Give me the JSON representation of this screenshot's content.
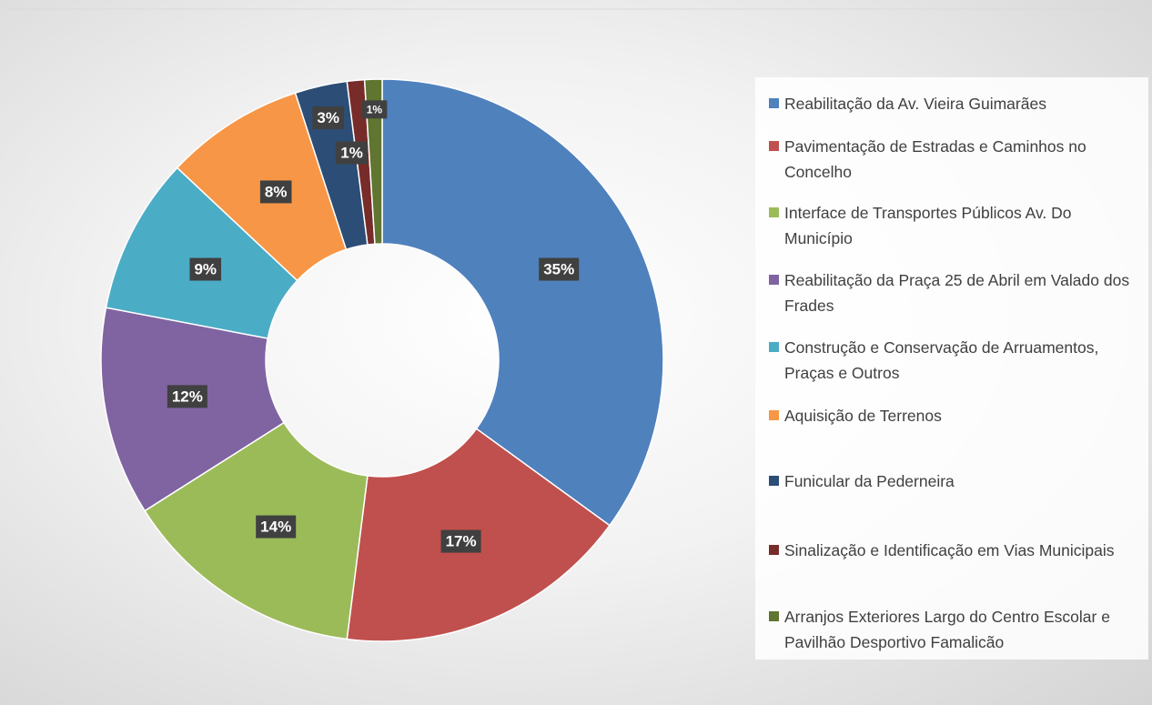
{
  "chart_data": {
    "type": "donut",
    "categories": [
      "Reabilitação da Av. Vieira Guimarães",
      "Pavimentação de Estradas e Caminhos no Concelho",
      "Interface de Transportes Públicos Av. Do Município",
      "Reabilitação da Praça 25 de Abril em Valado dos Frades",
      "Construção e Conservação de Arruamentos, Praças e Outros",
      "Aquisição de Terrenos",
      "Funicular da Pederneira",
      "Sinalização e Identificação em Vias Municipais",
      "Arranjos Exteriores Largo do Centro Escolar e Pavilhão Desportivo Famalicão"
    ],
    "values": [
      35,
      17,
      14,
      12,
      9,
      8,
      3,
      1,
      1
    ],
    "value_labels": [
      "35%",
      "17%",
      "14%",
      "12%",
      "9%",
      "8%",
      "3%",
      "1%",
      "1%"
    ],
    "colors": [
      "#4f81bd",
      "#c0504d",
      "#9bbb59",
      "#8064a2",
      "#4bacc6",
      "#f79646",
      "#2c4d75",
      "#772c2a",
      "#5f7530"
    ],
    "legend": "right"
  }
}
